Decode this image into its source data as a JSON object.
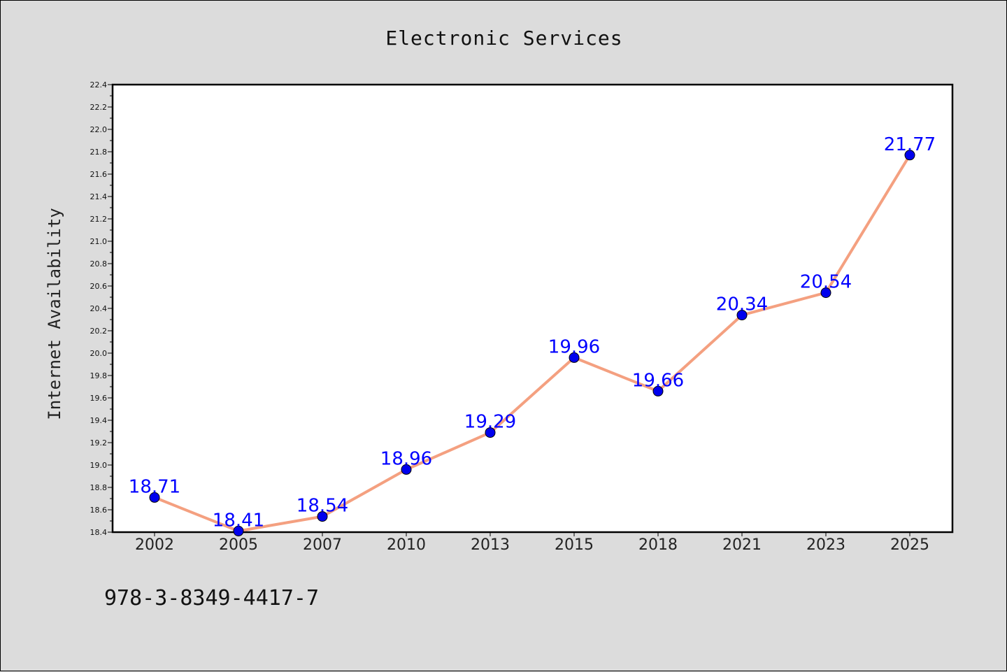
{
  "chart_data": {
    "type": "line",
    "title": "Electronic Services",
    "xlabel": "",
    "ylabel": "Internet Availability",
    "categories": [
      "2002",
      "2005",
      "2007",
      "2010",
      "2013",
      "2015",
      "2018",
      "2021",
      "2023",
      "2025"
    ],
    "series": [
      {
        "values": [
          18.71,
          18.41,
          18.54,
          18.96,
          19.29,
          19.96,
          19.66,
          20.34,
          20.54,
          21.77
        ]
      }
    ],
    "data_labels": [
      "18.71",
      "18.41",
      "18.54",
      "18.96",
      "19.29",
      "19.96",
      "19.66",
      "20.34",
      "20.54",
      "21.77"
    ],
    "ylim": [
      18.4,
      22.4
    ],
    "yticks": [
      "18.4",
      "18.6",
      "18.8",
      "19.0",
      "19.2",
      "19.4",
      "19.6",
      "19.8",
      "20.0",
      "20.2",
      "20.4",
      "20.6",
      "20.8",
      "21.0",
      "21.2",
      "21.4",
      "21.6",
      "21.8",
      "22.0",
      "22.2",
      "22.4"
    ],
    "grid": false,
    "legend": "none",
    "line_color": "#f4a080",
    "marker_color": "#0000ee",
    "label_color": "#0000ff",
    "background": "#dcdcdc",
    "plot_background": "#ffffff"
  },
  "footer": {
    "code": "978-3-8349-4417-7"
  }
}
